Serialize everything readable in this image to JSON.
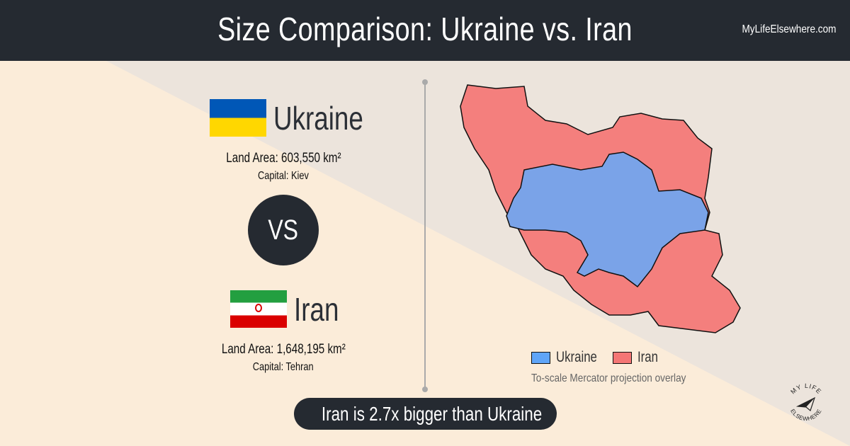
{
  "header": {
    "title": "Size Comparison: Ukraine vs. Iran",
    "site": "MyLifeElsewhere.com"
  },
  "countries": [
    {
      "name": "Ukraine",
      "land_area": "Land Area: 603,550 km²",
      "capital": "Capital: Kiev",
      "color": "#5fa5f8"
    },
    {
      "name": "Iran",
      "land_area": "Land Area: 1,648,195 km²",
      "capital": "Capital: Tehran",
      "color": "#f47675"
    }
  ],
  "vs_label": "VS",
  "legend": {
    "items": [
      "Ukraine",
      "Iran"
    ],
    "note": "To-scale Mercator projection overlay"
  },
  "summary": "Iran is 2.7x bigger than Ukraine",
  "logo": {
    "text_top": "MY LIFE",
    "text_bottom": "ELSEWHERE",
    "icon": "paper-plane-icon"
  }
}
